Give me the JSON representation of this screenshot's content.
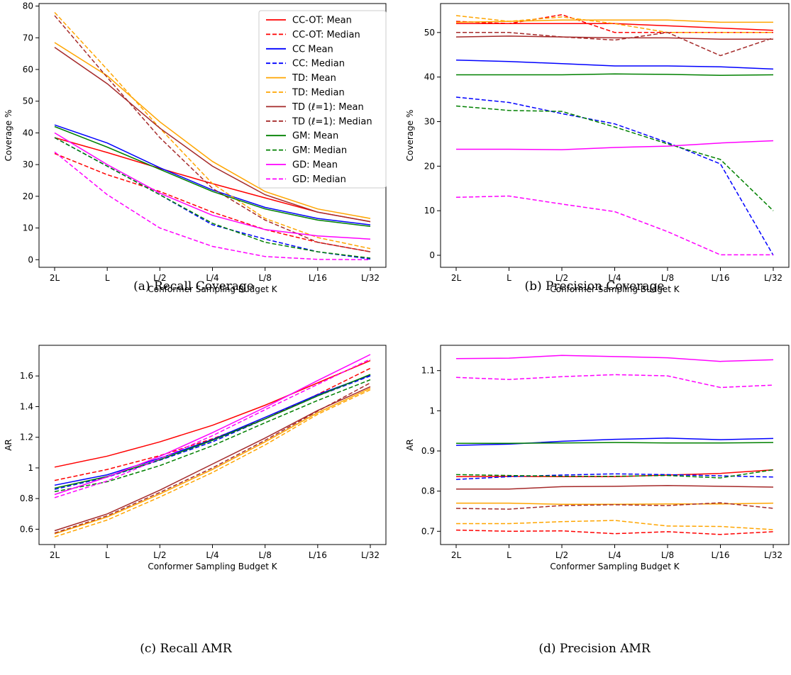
{
  "chart_data": [
    {
      "type": "line",
      "caption": "(a) Recall Coverage",
      "xlabel": "Conformer Sampling Budget K",
      "ylabel": "Coverage %",
      "categories": [
        "2L",
        "L",
        "L/2",
        "L/4",
        "L/8",
        "L/16",
        "L/32"
      ],
      "ylim": [
        -2.4,
        80.8
      ],
      "yticks": [
        0,
        10,
        20,
        30,
        40,
        50,
        60,
        70,
        80
      ],
      "legend": "top-right",
      "legend_entries": [
        {
          "label": "CC-OT: Mean",
          "color": "#ff0000",
          "dash": "solid"
        },
        {
          "label": "CC-OT: Median",
          "color": "#ff0000",
          "dash": "dashed"
        },
        {
          "label": "CC Mean",
          "color": "#0000ff",
          "dash": "solid"
        },
        {
          "label": "CC: Median",
          "color": "#0000ff",
          "dash": "dashed"
        },
        {
          "label": "TD: Mean",
          "color": "#ffa500",
          "dash": "solid"
        },
        {
          "label": "TD: Median",
          "color": "#ffa500",
          "dash": "dashed"
        },
        {
          "label": "TD (ℓ=1): Mean",
          "color": "#a52a2a",
          "dash": "solid"
        },
        {
          "label": "TD (ℓ=1): Median",
          "color": "#a52a2a",
          "dash": "dashed"
        },
        {
          "label": "GM: Mean",
          "color": "#008000",
          "dash": "solid"
        },
        {
          "label": "GM: Median",
          "color": "#008000",
          "dash": "dashed"
        },
        {
          "label": "GD: Mean",
          "color": "#ff00ff",
          "dash": "solid"
        },
        {
          "label": "GD: Median",
          "color": "#ff00ff",
          "dash": "dashed"
        }
      ],
      "series": [
        {
          "color": "#ff0000",
          "dash": "solid",
          "values": [
            38.5,
            33.8,
            28.8,
            24.0,
            19.5,
            15.0,
            12.0
          ]
        },
        {
          "color": "#ff0000",
          "dash": "dashed",
          "values": [
            33.5,
            26.8,
            21.5,
            15.0,
            9.5,
            5.5,
            2.5
          ]
        },
        {
          "color": "#0000ff",
          "dash": "solid",
          "values": [
            42.5,
            36.8,
            29.0,
            22.0,
            16.5,
            13.0,
            11.0
          ]
        },
        {
          "color": "#0000ff",
          "dash": "dashed",
          "values": [
            38.5,
            29.5,
            20.5,
            11.0,
            6.5,
            2.5,
            0.2
          ]
        },
        {
          "color": "#ffa500",
          "dash": "solid",
          "values": [
            68.5,
            58.0,
            43.5,
            31.0,
            21.5,
            16.0,
            13.0
          ]
        },
        {
          "color": "#ffa500",
          "dash": "dashed",
          "values": [
            78.0,
            60.0,
            41.5,
            24.0,
            13.0,
            7.0,
            3.5
          ]
        },
        {
          "color": "#a52a2a",
          "dash": "solid",
          "values": [
            67.0,
            55.5,
            41.5,
            29.5,
            20.5,
            15.0,
            12.0
          ]
        },
        {
          "color": "#a52a2a",
          "dash": "dashed",
          "values": [
            77.0,
            57.5,
            38.5,
            22.5,
            12.5,
            5.5,
            2.5
          ]
        },
        {
          "color": "#008000",
          "dash": "solid",
          "values": [
            42.0,
            35.5,
            28.5,
            21.5,
            16.0,
            12.5,
            10.5
          ]
        },
        {
          "color": "#008000",
          "dash": "dashed",
          "values": [
            38.5,
            29.5,
            20.5,
            11.5,
            5.5,
            2.5,
            0.5
          ]
        },
        {
          "color": "#ff00ff",
          "dash": "solid",
          "values": [
            40.0,
            30.0,
            21.0,
            14.0,
            9.5,
            7.5,
            6.5
          ]
        },
        {
          "color": "#ff00ff",
          "dash": "dashed",
          "values": [
            34.0,
            20.5,
            10.0,
            4.2,
            1.0,
            0.1,
            0.0
          ]
        }
      ]
    },
    {
      "type": "line",
      "caption": "(b) Precision Coverage",
      "xlabel": "Conformer Sampling Budget K",
      "ylabel": "Coverage %",
      "categories": [
        "2L",
        "L",
        "L/2",
        "L/4",
        "L/8",
        "L/16",
        "L/32"
      ],
      "ylim": [
        -2.7,
        56.5
      ],
      "yticks": [
        0,
        10,
        20,
        30,
        40,
        50
      ],
      "series": [
        {
          "color": "#ff0000",
          "dash": "solid",
          "values": [
            52.0,
            52.0,
            52.0,
            52.0,
            51.5,
            51.0,
            50.5
          ]
        },
        {
          "color": "#ff0000",
          "dash": "dashed",
          "values": [
            52.5,
            52.0,
            54.0,
            50.0,
            50.0,
            50.0,
            50.0
          ]
        },
        {
          "color": "#0000ff",
          "dash": "solid",
          "values": [
            43.8,
            43.5,
            43.0,
            42.5,
            42.5,
            42.3,
            41.8
          ]
        },
        {
          "color": "#0000ff",
          "dash": "dashed",
          "values": [
            35.5,
            34.3,
            31.8,
            29.5,
            25.3,
            20.5,
            0.0
          ]
        },
        {
          "color": "#ffa500",
          "dash": "solid",
          "values": [
            52.3,
            52.5,
            52.8,
            52.8,
            52.8,
            52.3,
            52.3
          ]
        },
        {
          "color": "#ffa500",
          "dash": "dashed",
          "values": [
            53.8,
            52.5,
            53.5,
            52.0,
            50.0,
            50.0,
            50.0
          ]
        },
        {
          "color": "#a52a2a",
          "dash": "solid",
          "values": [
            49.0,
            49.2,
            49.0,
            48.8,
            48.8,
            48.5,
            48.5
          ]
        },
        {
          "color": "#a52a2a",
          "dash": "dashed",
          "values": [
            50.0,
            50.0,
            49.0,
            48.3,
            50.0,
            44.8,
            48.8
          ]
        },
        {
          "color": "#008000",
          "dash": "solid",
          "values": [
            40.5,
            40.5,
            40.5,
            40.7,
            40.6,
            40.4,
            40.5
          ]
        },
        {
          "color": "#008000",
          "dash": "dashed",
          "values": [
            33.5,
            32.5,
            32.3,
            28.8,
            25.0,
            21.5,
            10.0
          ]
        },
        {
          "color": "#ff00ff",
          "dash": "solid",
          "values": [
            23.8,
            23.8,
            23.7,
            24.2,
            24.5,
            25.2,
            25.7
          ]
        },
        {
          "color": "#ff00ff",
          "dash": "dashed",
          "values": [
            13.0,
            13.3,
            11.5,
            9.8,
            5.3,
            0.1,
            0.1
          ]
        }
      ]
    },
    {
      "type": "line",
      "caption": "(c) Recall AMR",
      "xlabel": "Conformer Sampling Budget K",
      "ylabel": "AR",
      "categories": [
        "2L",
        "L",
        "L/2",
        "L/4",
        "L/8",
        "L/16",
        "L/32"
      ],
      "ylim": [
        0.5,
        1.8
      ],
      "yticks": [
        0.6,
        0.8,
        1.0,
        1.2,
        1.4,
        1.6
      ],
      "series": [
        {
          "color": "#ff0000",
          "dash": "solid",
          "values": [
            1.005,
            1.077,
            1.17,
            1.278,
            1.409,
            1.555,
            1.7
          ]
        },
        {
          "color": "#ff0000",
          "dash": "dashed",
          "values": [
            0.918,
            0.99,
            1.08,
            1.19,
            1.32,
            1.48,
            1.65
          ]
        },
        {
          "color": "#0000ff",
          "dash": "solid",
          "values": [
            0.887,
            0.955,
            1.063,
            1.185,
            1.33,
            1.478,
            1.605
          ]
        },
        {
          "color": "#0000ff",
          "dash": "dashed",
          "values": [
            0.86,
            0.94,
            1.05,
            1.17,
            1.32,
            1.47,
            1.6
          ]
        },
        {
          "color": "#ffa500",
          "dash": "solid",
          "values": [
            0.57,
            0.68,
            0.83,
            0.99,
            1.17,
            1.36,
            1.52
          ]
        },
        {
          "color": "#ffa500",
          "dash": "dashed",
          "values": [
            0.55,
            0.66,
            0.81,
            0.97,
            1.15,
            1.35,
            1.51
          ]
        },
        {
          "color": "#a52a2a",
          "dash": "solid",
          "values": [
            0.59,
            0.7,
            0.855,
            1.025,
            1.195,
            1.375,
            1.53
          ]
        },
        {
          "color": "#a52a2a",
          "dash": "dashed",
          "values": [
            0.575,
            0.688,
            0.84,
            1.0,
            1.18,
            1.37,
            1.555
          ]
        },
        {
          "color": "#008000",
          "dash": "solid",
          "values": [
            0.868,
            0.944,
            1.054,
            1.18,
            1.32,
            1.47,
            1.61
          ]
        },
        {
          "color": "#008000",
          "dash": "dashed",
          "values": [
            0.845,
            0.91,
            1.015,
            1.145,
            1.295,
            1.44,
            1.575
          ]
        },
        {
          "color": "#ff00ff",
          "dash": "solid",
          "values": [
            0.826,
            0.941,
            1.075,
            1.23,
            1.395,
            1.57,
            1.74
          ]
        },
        {
          "color": "#ff00ff",
          "dash": "dashed",
          "values": [
            0.806,
            0.915,
            1.06,
            1.21,
            1.38,
            1.545,
            1.71
          ]
        }
      ]
    },
    {
      "type": "line",
      "caption": "(d) Precision AMR",
      "xlabel": "Conformer Sampling Budget K",
      "ylabel": "AR",
      "categories": [
        "2L",
        "L",
        "L/2",
        "L/4",
        "L/8",
        "L/16",
        "L/32"
      ],
      "ylim": [
        0.667,
        1.163
      ],
      "yticks": [
        0.7,
        0.8,
        0.9,
        1.0,
        1.1
      ],
      "series": [
        {
          "color": "#ff0000",
          "dash": "solid",
          "values": [
            0.836,
            0.837,
            0.836,
            0.836,
            0.84,
            0.844,
            0.853
          ]
        },
        {
          "color": "#ff0000",
          "dash": "dashed",
          "values": [
            0.703,
            0.7,
            0.701,
            0.694,
            0.699,
            0.692,
            0.699
          ]
        },
        {
          "color": "#0000ff",
          "dash": "solid",
          "values": [
            0.914,
            0.917,
            0.924,
            0.929,
            0.932,
            0.928,
            0.931
          ]
        },
        {
          "color": "#0000ff",
          "dash": "dashed",
          "values": [
            0.829,
            0.836,
            0.84,
            0.843,
            0.841,
            0.838,
            0.835
          ]
        },
        {
          "color": "#ffa500",
          "dash": "solid",
          "values": [
            0.77,
            0.77,
            0.767,
            0.767,
            0.768,
            0.768,
            0.77
          ]
        },
        {
          "color": "#ffa500",
          "dash": "dashed",
          "values": [
            0.719,
            0.719,
            0.724,
            0.727,
            0.713,
            0.712,
            0.704
          ]
        },
        {
          "color": "#a52a2a",
          "dash": "solid",
          "values": [
            0.805,
            0.805,
            0.811,
            0.812,
            0.814,
            0.812,
            0.81
          ]
        },
        {
          "color": "#a52a2a",
          "dash": "dashed",
          "values": [
            0.757,
            0.755,
            0.764,
            0.766,
            0.764,
            0.771,
            0.757
          ]
        },
        {
          "color": "#008000",
          "dash": "solid",
          "values": [
            0.919,
            0.919,
            0.92,
            0.921,
            0.92,
            0.92,
            0.921
          ]
        },
        {
          "color": "#008000",
          "dash": "dashed",
          "values": [
            0.841,
            0.839,
            0.837,
            0.837,
            0.839,
            0.833,
            0.853
          ]
        },
        {
          "color": "#ff00ff",
          "dash": "solid",
          "values": [
            1.13,
            1.131,
            1.138,
            1.135,
            1.132,
            1.123,
            1.127
          ]
        },
        {
          "color": "#ff00ff",
          "dash": "dashed",
          "values": [
            1.083,
            1.078,
            1.085,
            1.09,
            1.087,
            1.058,
            1.064
          ]
        }
      ]
    }
  ]
}
